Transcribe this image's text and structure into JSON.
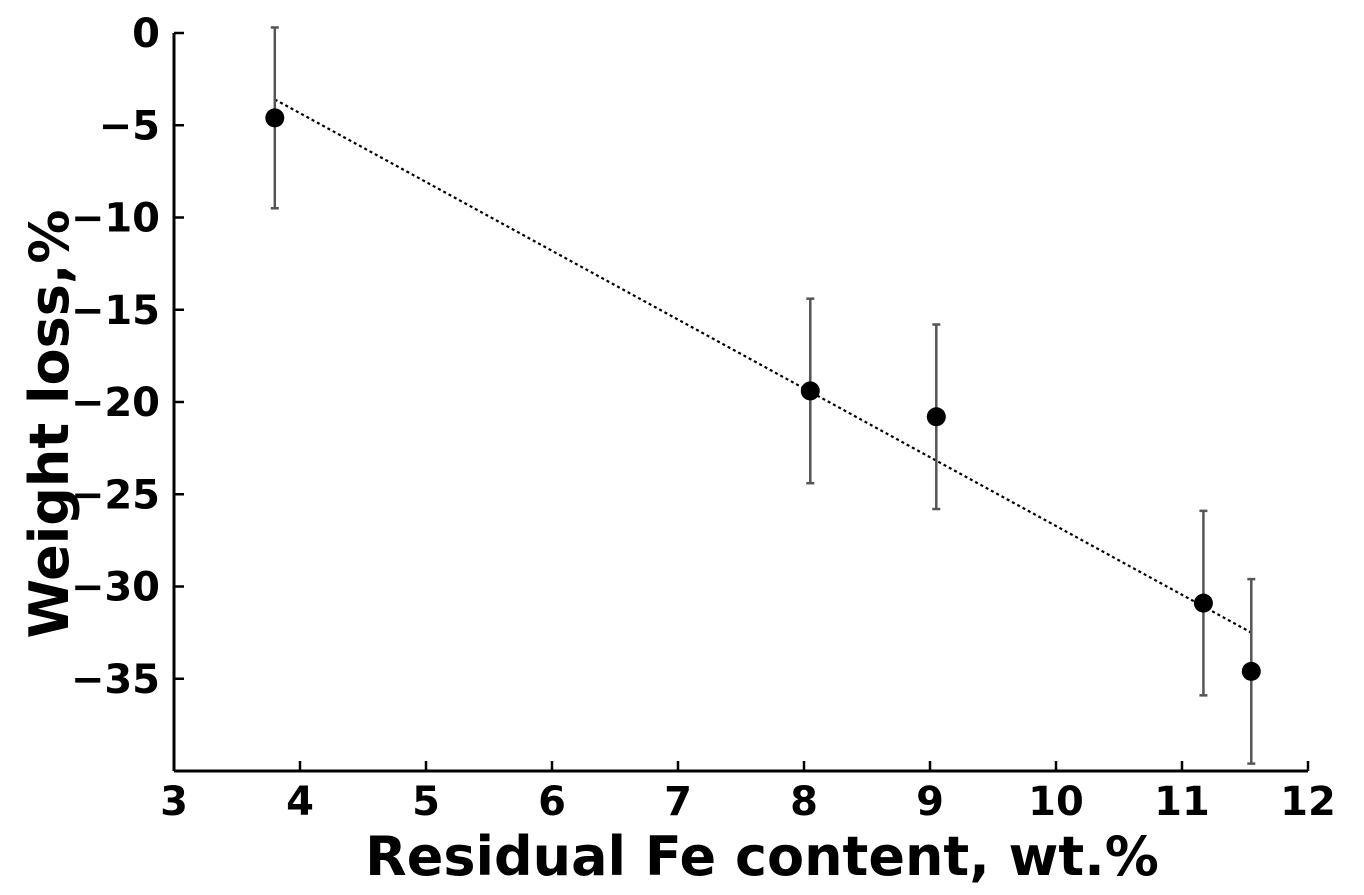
{
  "chart_data": {
    "type": "scatter",
    "title": "",
    "xlabel": "Residual Fe content, wt.%",
    "ylabel": "Weight loss,%",
    "xlim": [
      3,
      12
    ],
    "ylim": [
      -40,
      0
    ],
    "xticks": [
      3,
      4,
      5,
      6,
      7,
      8,
      9,
      10,
      11,
      12
    ],
    "yticks": [
      0,
      -5,
      -10,
      -15,
      -20,
      -25,
      -30,
      -35
    ],
    "xtick_labels": [
      "3",
      "4",
      "5",
      "6",
      "7",
      "8",
      "9",
      "10",
      "11",
      "12"
    ],
    "ytick_labels": [
      "0",
      "−5",
      "−10",
      "−15",
      "−20",
      "−25",
      "−30",
      "−35"
    ],
    "grid": false,
    "points": [
      {
        "x": 3.8,
        "y": -4.6,
        "err": 4.9
      },
      {
        "x": 8.05,
        "y": -19.4,
        "err": 5.0
      },
      {
        "x": 9.05,
        "y": -20.8,
        "err": 5.0
      },
      {
        "x": 11.17,
        "y": -30.9,
        "err": 5.0
      },
      {
        "x": 11.55,
        "y": -34.6,
        "err": 5.0
      }
    ],
    "fit_line": {
      "x": [
        3.8,
        11.55
      ],
      "y": [
        -3.6,
        -32.5
      ],
      "style": "dotted"
    }
  }
}
